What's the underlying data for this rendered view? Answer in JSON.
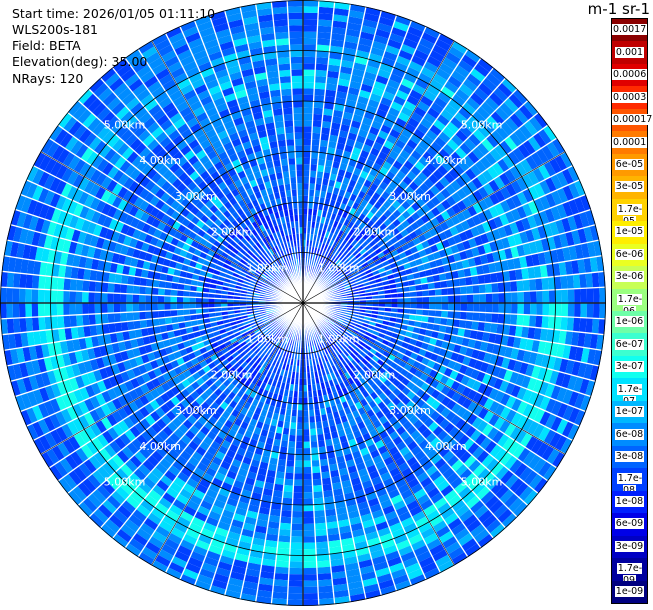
{
  "header": {
    "start_time": "Start time: 2026/01/05 01:11:10",
    "instrument": "WLS200s-181",
    "field": "Field: BETA",
    "elevation": "Elevation(deg): 35.00",
    "nrays": "NRays: 120"
  },
  "colorbar": {
    "units_fragment": "m-1 sr-1",
    "labels": [
      "0.0017",
      "0.001",
      "0.0006",
      "0.0003",
      "0.00017",
      "0.0001",
      "6e-05",
      "3e-05",
      "1.7e-05",
      "1e-05",
      "6e-06",
      "3e-06",
      "1.7e-06",
      "1e-06",
      "6e-07",
      "3e-07",
      "1.7e-07",
      "1e-07",
      "6e-08",
      "3e-08",
      "1.7e-08",
      "1e-08",
      "6e-09",
      "3e-09",
      "1.7e-09",
      "1e-09"
    ],
    "colors": [
      "#8b0000",
      "#c00000",
      "#e00000",
      "#ff2a00",
      "#ff5500",
      "#ff7b00",
      "#ff9a00",
      "#ffb400",
      "#ffd200",
      "#ffee00",
      "#eaff22",
      "#c8ff55",
      "#9bff80",
      "#6effa8",
      "#3cffd0",
      "#12ffef",
      "#00e2ff",
      "#00b8ff",
      "#008cff",
      "#0064ff",
      "#0040ff",
      "#0020ff",
      "#0000e8",
      "#0000c4",
      "#00009e",
      "#000080"
    ]
  },
  "chart_data": {
    "type": "heatmap",
    "projection": "polar-ppi",
    "nrays": 120,
    "max_range_km": 6.0,
    "range_rings_km": [
      1,
      2,
      3,
      4,
      5,
      6
    ],
    "range_labels": [
      "1.00km",
      "2.00km",
      "3.00km",
      "4.00km",
      "5.00km"
    ],
    "value_range": [
      1e-09,
      0.0017
    ],
    "dominant_value_range": [
      1e-08,
      1.7e-07
    ],
    "enhanced_band_km": [
      4.7,
      5.3
    ],
    "title": "",
    "xlabel": "",
    "ylabel": ""
  }
}
